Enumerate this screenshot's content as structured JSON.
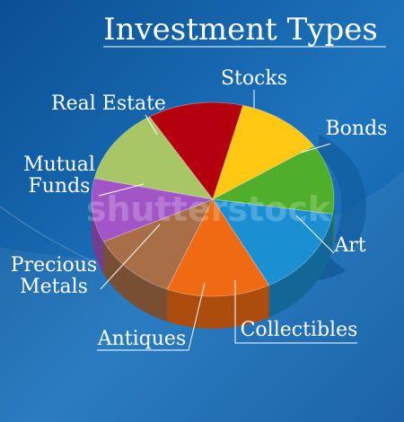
{
  "chart_data": {
    "type": "pie",
    "title": "Investment Types",
    "legend": "none",
    "slices": [
      {
        "label": "Stocks",
        "value": 12,
        "color": "#b5000f"
      },
      {
        "label": "Bonds",
        "value": 11,
        "color": "#ffc813"
      },
      {
        "label": "Art",
        "value": 11,
        "color": "#4fae2a"
      },
      {
        "label": "Collectibles",
        "value": 14,
        "color": "#1a8fd2"
      },
      {
        "label": "Antiques",
        "value": 13,
        "color": "#ef6a12"
      },
      {
        "label": "Precious Metals",
        "value": 11,
        "color": "#a86e47"
      },
      {
        "label": "Mutual Funds",
        "value": 10,
        "color": "#a255c6"
      },
      {
        "label": "Real Estate",
        "value": 12,
        "color": "#a9c667"
      }
    ],
    "label_lines": {
      "Stocks": [
        "Stocks"
      ],
      "Bonds": [
        "Bonds"
      ],
      "Art": [
        "Art"
      ],
      "Collectibles": [
        "Collectibles"
      ],
      "Antiques": [
        "Antiques"
      ],
      "Precious Metals": [
        "Precious",
        "Metals"
      ],
      "Mutual Funds": [
        "Mutual",
        "Funds"
      ],
      "Real Estate": [
        "Real Estate"
      ]
    }
  },
  "watermark": "shutterstock"
}
